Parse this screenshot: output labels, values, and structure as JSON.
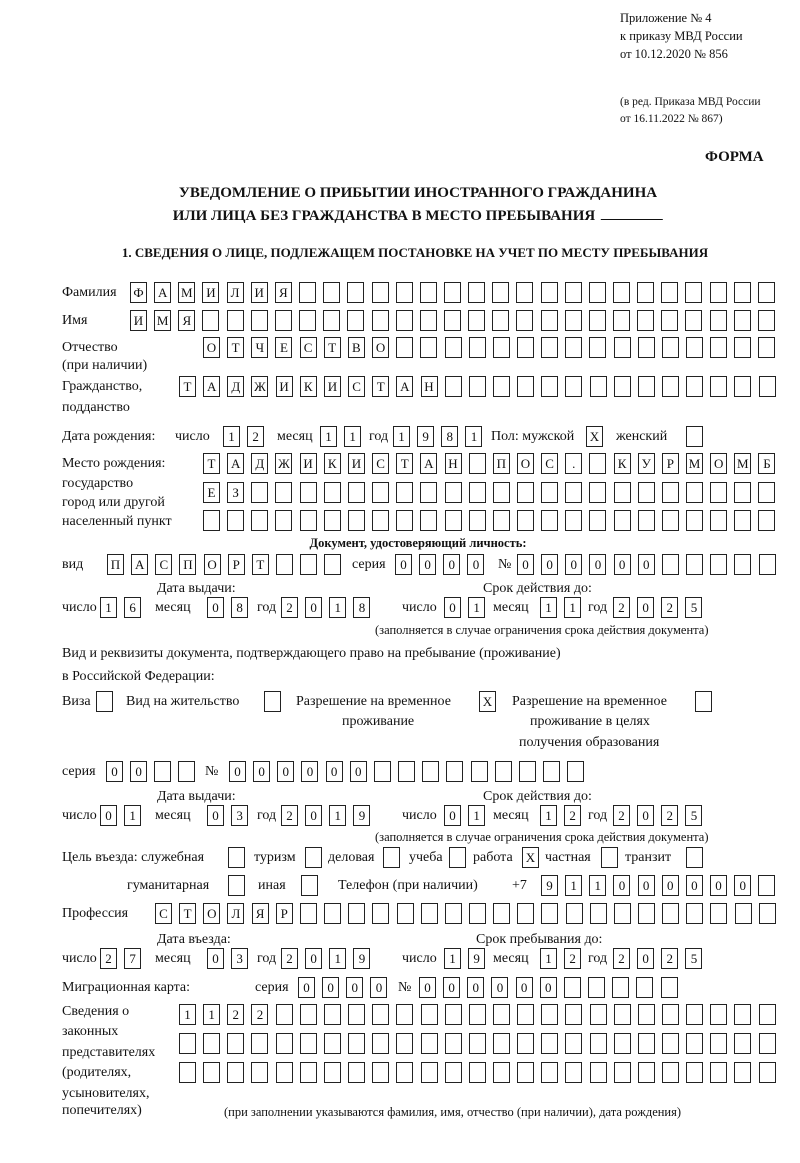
{
  "header": {
    "appendix": "Приложение № 4",
    "order": "к приказу МВД России",
    "order_date": "от 10.12.2020 № 856",
    "edition": "(в ред. Приказа МВД России",
    "edition_date": "от 16.11.2022 № 867)",
    "form_label": "ФОРМА",
    "title_line1": "УВЕДОМЛЕНИЕ О ПРИБЫТИИ ИНОСТРАННОГО ГРАЖДАНИНА",
    "title_line2": "ИЛИ ЛИЦА БЕЗ ГРАЖДАНСТВА В МЕСТО ПРЕБЫВАНИЯ",
    "section1": "1. СВЕДЕНИЯ О ЛИЦЕ, ПОДЛЕЖАЩЕМ ПОСТАНОВКЕ НА УЧЕТ ПО МЕСТУ ПРЕБЫВАНИЯ"
  },
  "labels": {
    "surname": "Фамилия",
    "name": "Имя",
    "patronymic": "Отчество",
    "if_any": "(при наличии)",
    "citizenship": "Гражданство,",
    "allegiance": "подданство",
    "birth_date": "Дата рождения:",
    "day": "число",
    "month": "месяц",
    "year": "год",
    "sex": "Пол: мужской",
    "female": "женский",
    "birth_place": "Место рождения:",
    "state": "государство",
    "city1": "город или другой",
    "city2": "населенный пункт",
    "id_doc": "Документ, удостоверяющий личность:",
    "kind": "вид",
    "series": "серия",
    "number": "№",
    "issue_date": "Дата выдачи:",
    "valid_until": "Срок действия до:",
    "validity_note": "(заполняется в случае ограничения срока действия документа)",
    "right_doc1": "Вид и реквизиты документа, подтверждающего право на пребывание (проживание)",
    "right_doc2": "в Российской Федерации:",
    "visa": "Виза",
    "residence": "Вид на жительство",
    "trp1": "Разрешение на временное",
    "trp2": "проживание",
    "trp_edu1": "Разрешение на временное",
    "trp_edu2": "проживание в целях",
    "trp_edu3": "получения образования",
    "purpose": "Цель въезда: служебная",
    "tourism": "туризм",
    "business": "деловая",
    "study": "учеба",
    "work": "работа",
    "private": "частная",
    "transit": "транзит",
    "humanitarian": "гуманитарная",
    "other": "иная",
    "phone": "Телефон (при наличии)",
    "phone_prefix": "+7",
    "profession": "Профессия",
    "entry_date": "Дата въезда:",
    "stay_until": "Срок пребывания до:",
    "migration_card": "Миграционная карта:",
    "reps1": "Сведения о",
    "reps2": "законных",
    "reps3": "представителях",
    "reps4": "(родителях,",
    "reps5": "усыновителях,",
    "reps6": "попечителях)",
    "reps_note": "(при заполнении указываются фамилия, имя, отчество (при наличии), дата рождения)"
  },
  "person": {
    "surname": {
      "value": "ФАМИЛИЯ",
      "boxes": 27
    },
    "name": {
      "value": "ИМЯ",
      "boxes": 27
    },
    "patronymic": {
      "value": "ОТЧЕСТВО",
      "boxes": 24
    },
    "citizenship": {
      "value": "ТАДЖИКИСТАН",
      "boxes": 25
    },
    "birth_day": {
      "value": "12",
      "boxes": 2
    },
    "birth_month": {
      "value": "11",
      "boxes": 2
    },
    "birth_year": {
      "value": "1981",
      "boxes": 4
    },
    "sex_male": {
      "value": "X",
      "boxes": 1
    },
    "sex_female": {
      "value": "",
      "boxes": 1
    },
    "birth_place_1": {
      "value": "ТАДЖИКИСТАН ПОС. КУРМОМБ",
      "boxes": 24
    },
    "birth_place_2": {
      "value": "ЕЗ",
      "boxes": 24
    },
    "birth_place_3": {
      "value": "",
      "boxes": 24
    }
  },
  "identity_doc": {
    "kind": {
      "value": "ПАСПОРТ",
      "boxes": 10
    },
    "series": {
      "value": "0000",
      "boxes": 4
    },
    "number": {
      "value": "000000",
      "boxes": 11
    },
    "issue_day": {
      "value": "16",
      "boxes": 2
    },
    "issue_month": {
      "value": "08",
      "boxes": 2
    },
    "issue_year": {
      "value": "2018",
      "boxes": 4
    },
    "valid_day": {
      "value": "01",
      "boxes": 2
    },
    "valid_month": {
      "value": "11",
      "boxes": 2
    },
    "valid_year": {
      "value": "2025",
      "boxes": 4
    }
  },
  "right_doc": {
    "visa": {
      "value": "",
      "boxes": 1
    },
    "residence": {
      "value": "",
      "boxes": 1
    },
    "trp": {
      "value": "X",
      "boxes": 1
    },
    "trp_edu": {
      "value": "",
      "boxes": 1
    },
    "series": {
      "value": "00",
      "boxes": 4
    },
    "number": {
      "value": "000000",
      "boxes": 15
    },
    "issue_day": {
      "value": "01",
      "boxes": 2
    },
    "issue_month": {
      "value": "03",
      "boxes": 2
    },
    "issue_year": {
      "value": "2019",
      "boxes": 4
    },
    "valid_day": {
      "value": "01",
      "boxes": 2
    },
    "valid_month": {
      "value": "12",
      "boxes": 2
    },
    "valid_year": {
      "value": "2025",
      "boxes": 4
    }
  },
  "purpose": {
    "official": {
      "value": "",
      "boxes": 1
    },
    "tourism": {
      "value": "",
      "boxes": 1
    },
    "business": {
      "value": "",
      "boxes": 1
    },
    "study": {
      "value": "",
      "boxes": 1
    },
    "work": {
      "value": "X",
      "boxes": 1
    },
    "private": {
      "value": "",
      "boxes": 1
    },
    "transit": {
      "value": "",
      "boxes": 1
    },
    "humanitarian": {
      "value": "",
      "boxes": 1
    },
    "other": {
      "value": "",
      "boxes": 1
    }
  },
  "contact": {
    "phone": {
      "value": "911000000",
      "boxes": 10
    },
    "profession": {
      "value": "СТОЛЯР",
      "boxes": 26
    }
  },
  "stay": {
    "entry_day": {
      "value": "27",
      "boxes": 2
    },
    "entry_month": {
      "value": "03",
      "boxes": 2
    },
    "entry_year": {
      "value": "2019",
      "boxes": 4
    },
    "until_day": {
      "value": "19",
      "boxes": 2
    },
    "until_month": {
      "value": "12",
      "boxes": 2
    },
    "until_year": {
      "value": "2025",
      "boxes": 4
    },
    "card_series": {
      "value": "0000",
      "boxes": 4
    },
    "card_number": {
      "value": "000000",
      "boxes": 11
    }
  },
  "representatives": {
    "row1": {
      "value": "1122",
      "boxes": 25
    },
    "row2": {
      "value": "",
      "boxes": 25
    },
    "row3": {
      "value": "",
      "boxes": 25
    }
  }
}
